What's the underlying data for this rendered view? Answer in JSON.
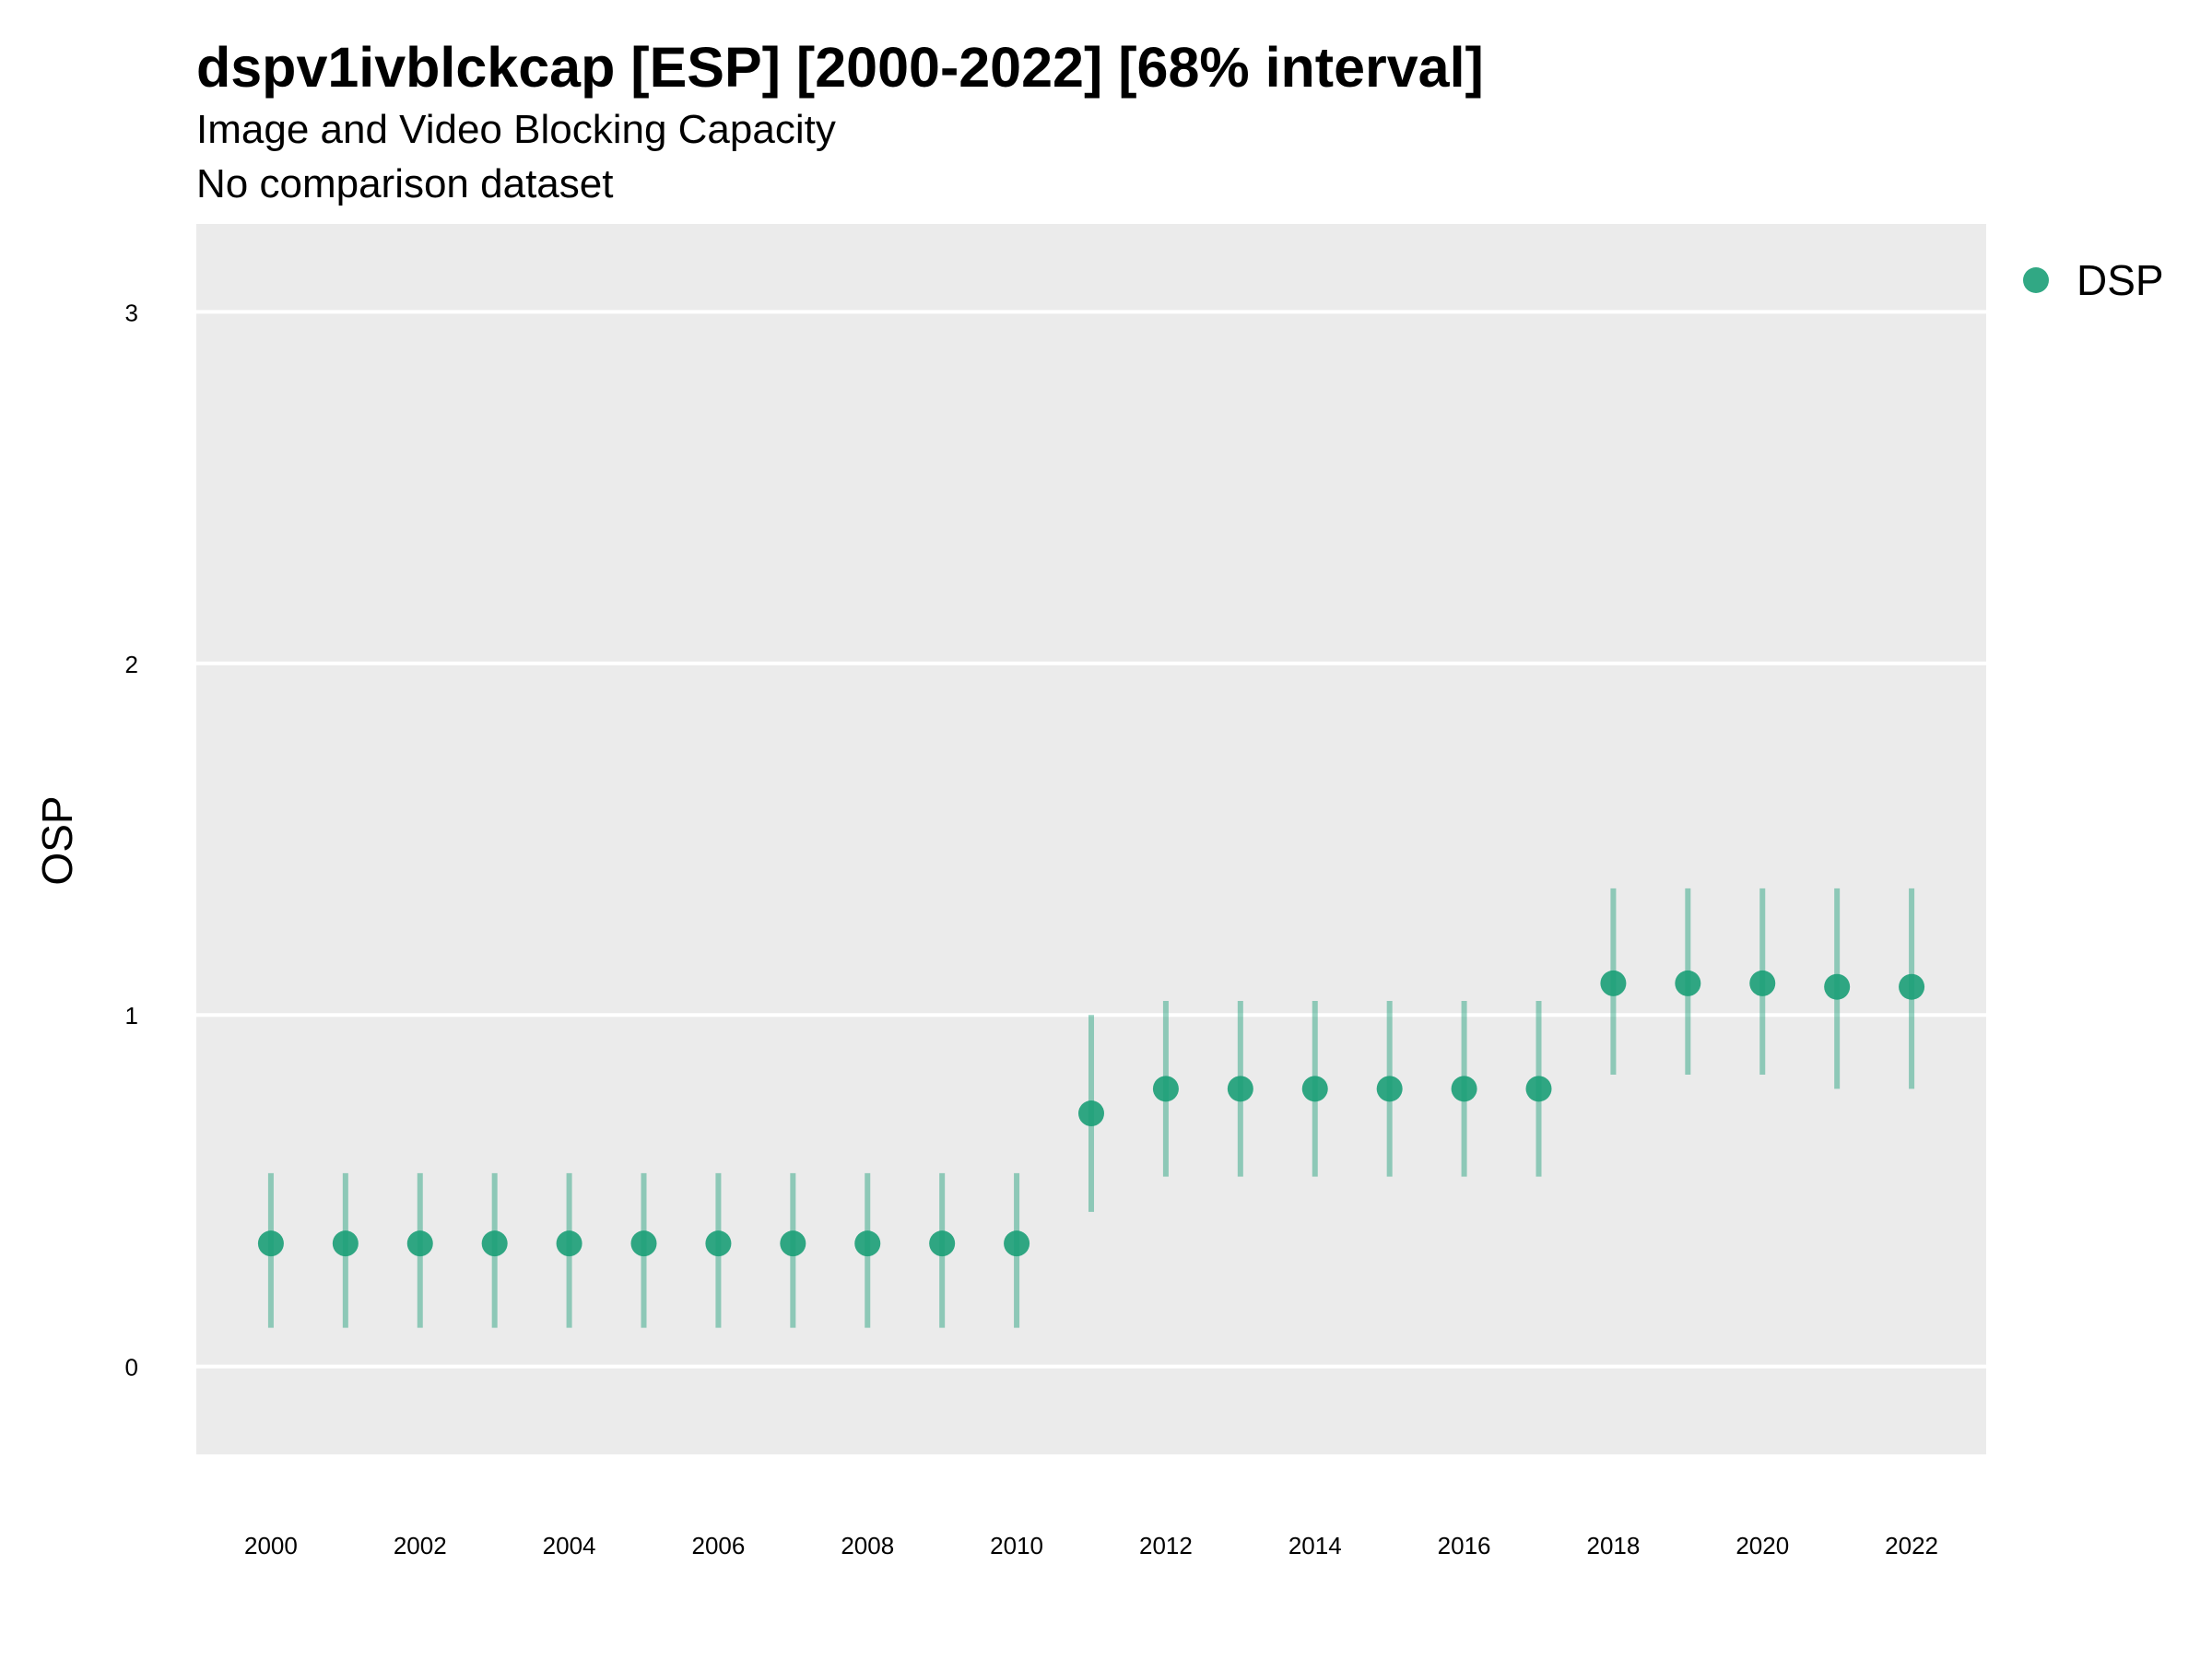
{
  "chart_data": {
    "type": "scatter",
    "title": "dspv1ivblckcap [ESP] [2000-2022] [68% interval]",
    "subtitle": "Image and Video Blocking Capacity",
    "subtitle2": "No comparison dataset",
    "xlabel": "",
    "ylabel": "OSP",
    "xlim": [
      1999,
      2023
    ],
    "ylim": [
      -0.25,
      3.25
    ],
    "x_ticks": [
      2000,
      2002,
      2004,
      2006,
      2008,
      2010,
      2012,
      2014,
      2016,
      2018,
      2020,
      2022
    ],
    "y_ticks": [
      0,
      1,
      2,
      3
    ],
    "grid": true,
    "legend_position": "right",
    "colors": {
      "series": "#1b9e77",
      "panel": "#ebebeb",
      "grid": "#ffffff"
    },
    "series": [
      {
        "name": "DSP",
        "x": [
          2000,
          2001,
          2002,
          2003,
          2004,
          2005,
          2006,
          2007,
          2008,
          2009,
          2010,
          2011,
          2012,
          2013,
          2014,
          2015,
          2016,
          2017,
          2018,
          2019,
          2020,
          2021,
          2022
        ],
        "y": [
          0.35,
          0.35,
          0.35,
          0.35,
          0.35,
          0.35,
          0.35,
          0.35,
          0.35,
          0.35,
          0.35,
          0.72,
          0.79,
          0.79,
          0.79,
          0.79,
          0.79,
          0.79,
          1.09,
          1.09,
          1.09,
          1.08,
          1.08
        ],
        "lower": [
          0.11,
          0.11,
          0.11,
          0.11,
          0.11,
          0.11,
          0.11,
          0.11,
          0.11,
          0.11,
          0.11,
          0.44,
          0.54,
          0.54,
          0.54,
          0.54,
          0.54,
          0.54,
          0.83,
          0.83,
          0.83,
          0.79,
          0.79
        ],
        "upper": [
          0.55,
          0.55,
          0.55,
          0.55,
          0.55,
          0.55,
          0.55,
          0.55,
          0.55,
          0.55,
          0.55,
          1.0,
          1.04,
          1.04,
          1.04,
          1.04,
          1.04,
          1.04,
          1.36,
          1.36,
          1.36,
          1.36,
          1.36
        ]
      }
    ]
  }
}
